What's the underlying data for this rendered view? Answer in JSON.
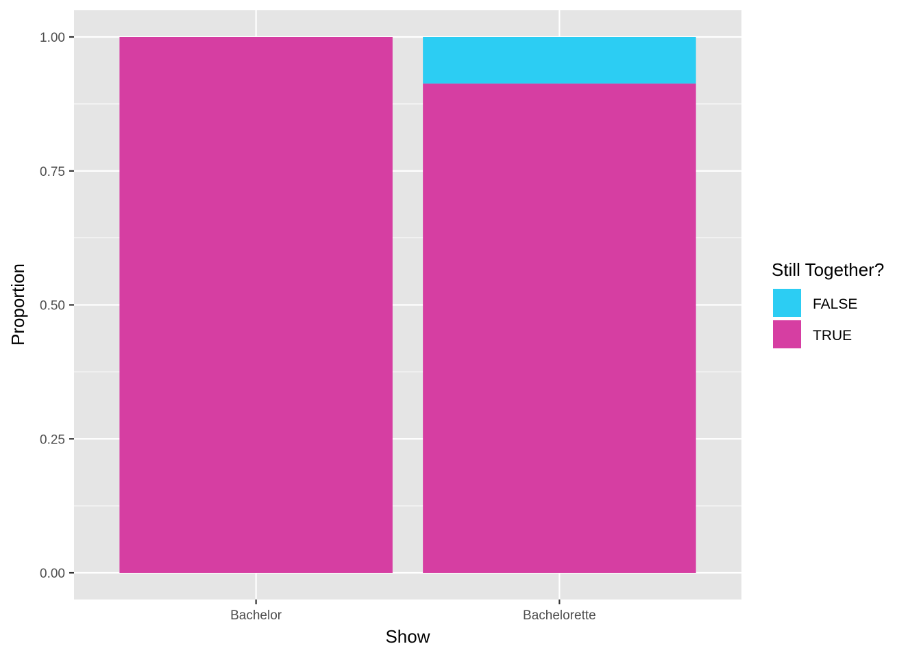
{
  "chart_data": {
    "type": "bar",
    "stacked": true,
    "categories": [
      "Bachelor",
      "Bachelorette"
    ],
    "series": [
      {
        "name": "FALSE",
        "values": [
          0.0,
          0.087
        ],
        "color": "#2ccdf3"
      },
      {
        "name": "TRUE",
        "values": [
          1.0,
          0.913
        ],
        "color": "#d63ea2"
      }
    ],
    "xlabel": "Show",
    "ylabel": "Proportion",
    "ylim": [
      0,
      1
    ],
    "y_ticks": [
      "0.00",
      "0.25",
      "0.50",
      "0.75",
      "1.00"
    ],
    "y_tick_values": [
      0,
      0.25,
      0.5,
      0.75,
      1.0
    ],
    "legend": {
      "title": "Still Together?",
      "placement": "right"
    },
    "grid": true,
    "panel_background": "#e5e5e5",
    "grid_color": "#ffffff"
  }
}
